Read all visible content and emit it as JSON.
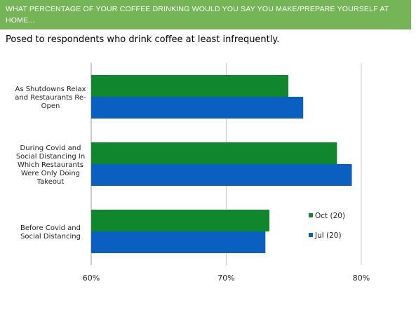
{
  "header": {
    "title": "WHAT PERCENTAGE OF YOUR COFFEE DRINKING WOULD YOU SAY YOU MAKE/PREPARE YOURSELF AT HOME..."
  },
  "subtitle": "Posed to respondents who drink coffee at least infrequently.",
  "chart_data": {
    "type": "bar",
    "orientation": "horizontal",
    "categories": [
      [
        "As Shutdowns Relax",
        "and Restaurants Re-",
        "Open"
      ],
      [
        "During Covid and",
        "Social Distancing In",
        "Which Restaurants",
        "Were Only Doing",
        "Takeout"
      ],
      [
        "Before Covid and",
        "Social Distancing"
      ]
    ],
    "series": [
      {
        "name": "Oct (20)",
        "color": "#10872c",
        "values": [
          74.6,
          78.2,
          73.2
        ]
      },
      {
        "name": "Jul (20)",
        "color": "#0b5fc0",
        "values": [
          75.7,
          79.3,
          72.9
        ]
      }
    ],
    "xlim": [
      60,
      80
    ],
    "xticks": [
      60,
      70,
      80
    ],
    "xtick_labels": [
      "60%",
      "70%",
      "80%"
    ],
    "grid": "vertical",
    "legend": "right"
  }
}
